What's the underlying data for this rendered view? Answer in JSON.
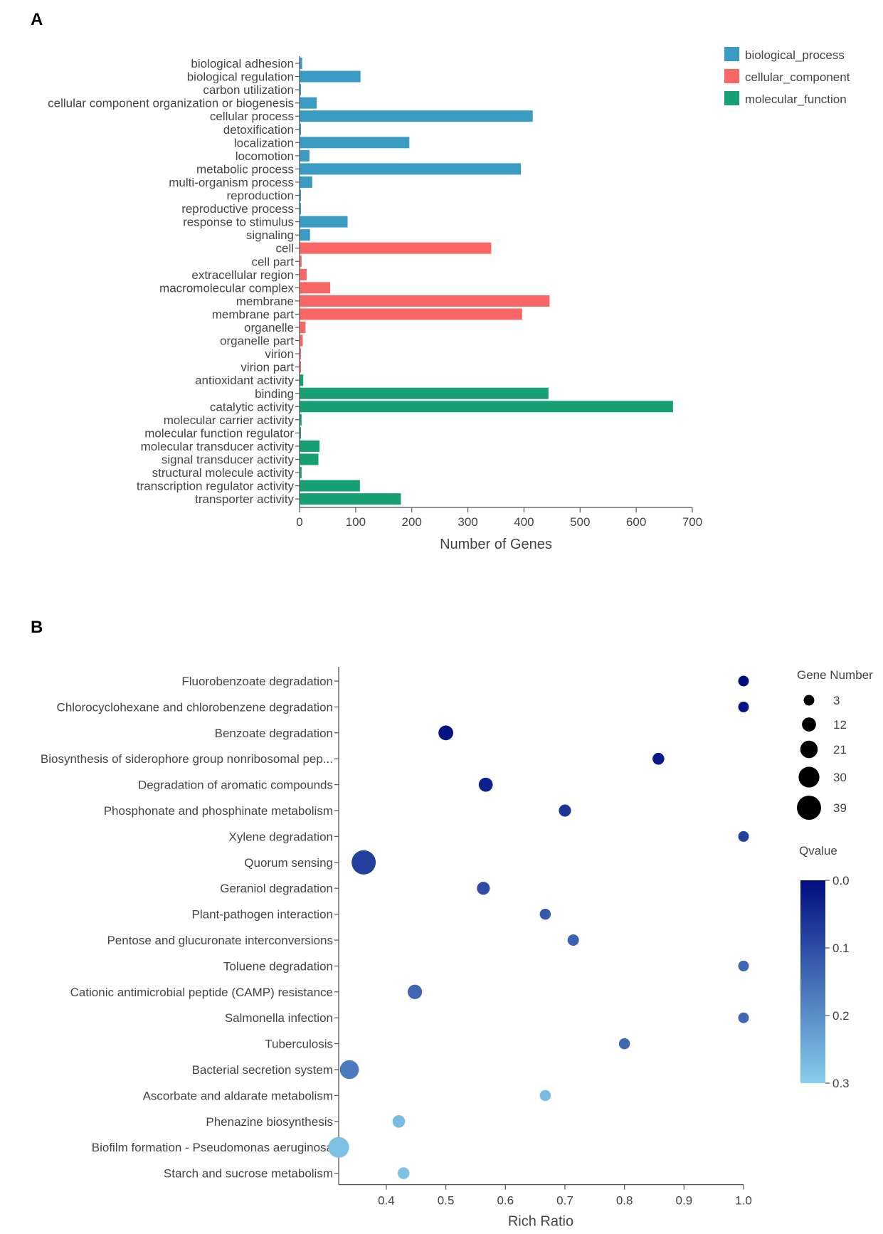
{
  "panels": {
    "a_letter": "A",
    "b_letter": "B"
  },
  "chart_data": [
    {
      "type": "bar",
      "orientation": "horizontal",
      "xlabel": "Number of Genes",
      "xlim": [
        0,
        700
      ],
      "xticks": [
        0,
        100,
        200,
        300,
        400,
        500,
        600,
        700
      ],
      "legend": [
        {
          "name": "biological_process",
          "color": "#3a9cc3"
        },
        {
          "name": "cellular_component",
          "color": "#f96666"
        },
        {
          "name": "molecular_function",
          "color": "#18a075"
        }
      ],
      "categories": [
        {
          "label": "biological adhesion",
          "value": 4,
          "group": 0
        },
        {
          "label": "biological regulation",
          "value": 108,
          "group": 0
        },
        {
          "label": "carbon utilization",
          "value": 1,
          "group": 0
        },
        {
          "label": "cellular component organization or biogenesis",
          "value": 30,
          "group": 0
        },
        {
          "label": "cellular process",
          "value": 415,
          "group": 0
        },
        {
          "label": "detoxification",
          "value": 1,
          "group": 0
        },
        {
          "label": "localization",
          "value": 195,
          "group": 0
        },
        {
          "label": "locomotion",
          "value": 17,
          "group": 0
        },
        {
          "label": "metabolic process",
          "value": 394,
          "group": 0
        },
        {
          "label": "multi-organism process",
          "value": 22,
          "group": 0
        },
        {
          "label": "reproduction",
          "value": 1,
          "group": 0
        },
        {
          "label": "reproductive process",
          "value": 1,
          "group": 0
        },
        {
          "label": "response to stimulus",
          "value": 85,
          "group": 0
        },
        {
          "label": "signaling",
          "value": 18,
          "group": 0
        },
        {
          "label": "cell",
          "value": 341,
          "group": 1
        },
        {
          "label": "cell part",
          "value": 3,
          "group": 1
        },
        {
          "label": "extracellular region",
          "value": 12,
          "group": 1
        },
        {
          "label": "macromolecular complex",
          "value": 54,
          "group": 1
        },
        {
          "label": "membrane",
          "value": 445,
          "group": 1
        },
        {
          "label": "membrane part",
          "value": 396,
          "group": 1
        },
        {
          "label": "organelle",
          "value": 10,
          "group": 1
        },
        {
          "label": "organelle part",
          "value": 5,
          "group": 1
        },
        {
          "label": "virion",
          "value": 1,
          "group": 1
        },
        {
          "label": "virion part",
          "value": 1,
          "group": 1
        },
        {
          "label": "antioxidant activity",
          "value": 6,
          "group": 2
        },
        {
          "label": "binding",
          "value": 443,
          "group": 2
        },
        {
          "label": "catalytic activity",
          "value": 665,
          "group": 2
        },
        {
          "label": "molecular carrier activity",
          "value": 3,
          "group": 2
        },
        {
          "label": "molecular function regulator",
          "value": 1,
          "group": 2
        },
        {
          "label": "molecular transducer activity",
          "value": 35,
          "group": 2
        },
        {
          "label": "signal transducer activity",
          "value": 33,
          "group": 2
        },
        {
          "label": "structural molecule activity",
          "value": 3,
          "group": 2
        },
        {
          "label": "transcription regulator activity",
          "value": 107,
          "group": 2
        },
        {
          "label": "transporter activity",
          "value": 180,
          "group": 2
        }
      ]
    },
    {
      "type": "scatter",
      "xlabel": "Rich Ratio",
      "xlim": [
        0.32,
        1.0
      ],
      "xticks": [
        "0.4",
        "0.5",
        "0.6",
        "0.7",
        "0.8",
        "0.9",
        "1.0"
      ],
      "size_legend_title": "Gene Number",
      "size_legend": [
        3,
        12,
        21,
        30,
        39
      ],
      "color_legend_title": "Qvalue",
      "color_legend_ticks": [
        "0.0",
        "0.1",
        "0.2",
        "0.3"
      ],
      "color_range": [
        "#000d80",
        "#87ceeb"
      ],
      "qlim": [
        0,
        0.3
      ],
      "points": [
        {
          "term": "Fluorobenzoate degradation",
          "ratio": 1.0,
          "genes": 3,
          "q": 0.0
        },
        {
          "term": "Chlorocyclohexane and chlorobenzene degradation",
          "ratio": 1.0,
          "genes": 3,
          "q": 0.01
        },
        {
          "term": "Benzoate degradation",
          "ratio": 0.5,
          "genes": 14,
          "q": 0.01
        },
        {
          "term": "Biosynthesis of siderophore group nonribosomal pep...",
          "ratio": 0.857,
          "genes": 6,
          "q": 0.02
        },
        {
          "term": "Degradation of aromatic compounds",
          "ratio": 0.567,
          "genes": 12,
          "q": 0.03
        },
        {
          "term": "Phosphonate and phosphinate metabolism",
          "ratio": 0.7,
          "genes": 7,
          "q": 0.06
        },
        {
          "term": "Xylene degradation",
          "ratio": 1.0,
          "genes": 3,
          "q": 0.08
        },
        {
          "term": "Quorum sensing",
          "ratio": 0.362,
          "genes": 39,
          "q": 0.08
        },
        {
          "term": "Geraniol degradation",
          "ratio": 0.563,
          "genes": 9,
          "q": 0.1
        },
        {
          "term": "Plant-pathogen interaction",
          "ratio": 0.667,
          "genes": 4,
          "q": 0.12
        },
        {
          "term": "Pentose and glucuronate interconversions",
          "ratio": 0.714,
          "genes": 5,
          "q": 0.13
        },
        {
          "term": "Toluene degradation",
          "ratio": 1.0,
          "genes": 3,
          "q": 0.14
        },
        {
          "term": "Cationic antimicrobial peptide (CAMP) resistance",
          "ratio": 0.448,
          "genes": 13,
          "q": 0.14
        },
        {
          "term": "Salmonella infection",
          "ratio": 1.0,
          "genes": 3,
          "q": 0.14
        },
        {
          "term": "Tuberculosis",
          "ratio": 0.8,
          "genes": 4,
          "q": 0.14
        },
        {
          "term": "Bacterial secretion system",
          "ratio": 0.338,
          "genes": 25,
          "q": 0.17
        },
        {
          "term": "Ascorbate and aldarate metabolism",
          "ratio": 0.667,
          "genes": 4,
          "q": 0.27
        },
        {
          "term": "Phenazine biosynthesis",
          "ratio": 0.421,
          "genes": 8,
          "q": 0.27
        },
        {
          "term": "Biofilm formation - Pseudomonas aeruginosa",
          "ratio": 0.32,
          "genes": 30,
          "q": 0.28
        },
        {
          "term": "Starch and sucrose metabolism",
          "ratio": 0.429,
          "genes": 6,
          "q": 0.28
        }
      ]
    }
  ]
}
